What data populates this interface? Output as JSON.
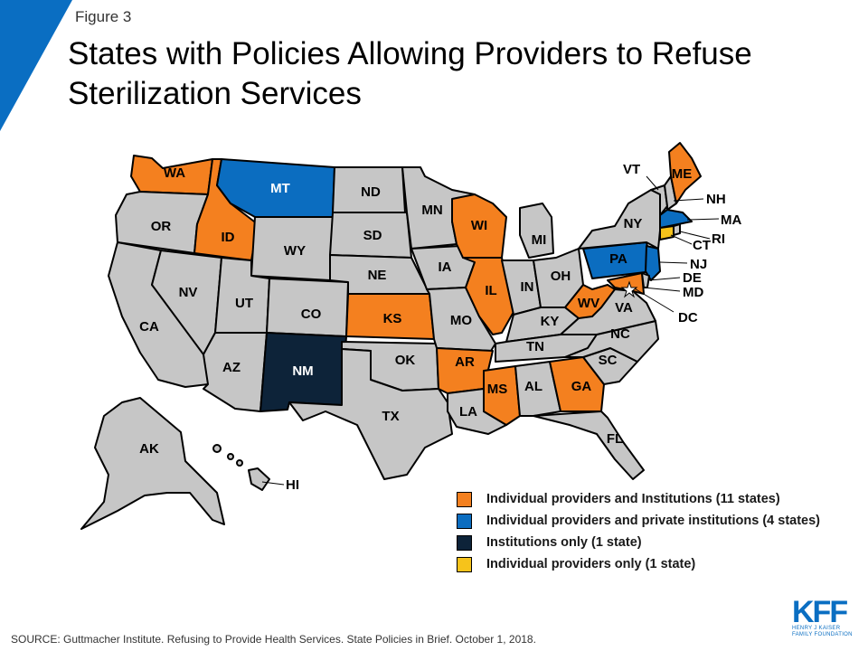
{
  "figure_label": "Figure 3",
  "title": "States with Policies Allowing Providers to Refuse Sterilization Services",
  "source": "SOURCE: Guttmacher Institute. Refusing to Provide Health Services. State Policies in Brief. October 1, 2018.",
  "logo": {
    "mark": "KFF",
    "line1": "HENRY J KAISER",
    "line2": "FAMILY FOUNDATION"
  },
  "colors": {
    "accent": "#0a6ec2",
    "none": "#c6c6c6",
    "individual_and_institutions": "#f4801f",
    "individual_and_private": "#0b6dc0",
    "institutions_only": "#0d2339",
    "individual_only": "#f6c31b"
  },
  "legend": [
    {
      "category": "individual_and_institutions",
      "label": "Individual providers and Institutions (11 states)"
    },
    {
      "category": "individual_and_private",
      "label": "Individual providers and private institutions (4 states)"
    },
    {
      "category": "institutions_only",
      "label": "Institutions only (1 state)"
    },
    {
      "category": "individual_only",
      "label": "Individual providers only (1 state)"
    }
  ],
  "states": [
    {
      "abbr": "WA",
      "category": "individual_and_institutions"
    },
    {
      "abbr": "OR",
      "category": "none"
    },
    {
      "abbr": "CA",
      "category": "none"
    },
    {
      "abbr": "ID",
      "category": "individual_and_institutions"
    },
    {
      "abbr": "NV",
      "category": "none"
    },
    {
      "abbr": "MT",
      "category": "individual_and_private"
    },
    {
      "abbr": "WY",
      "category": "none"
    },
    {
      "abbr": "UT",
      "category": "none"
    },
    {
      "abbr": "AZ",
      "category": "none"
    },
    {
      "abbr": "CO",
      "category": "none"
    },
    {
      "abbr": "NM",
      "category": "institutions_only"
    },
    {
      "abbr": "ND",
      "category": "none"
    },
    {
      "abbr": "SD",
      "category": "none"
    },
    {
      "abbr": "NE",
      "category": "none"
    },
    {
      "abbr": "KS",
      "category": "individual_and_institutions"
    },
    {
      "abbr": "OK",
      "category": "none"
    },
    {
      "abbr": "TX",
      "category": "none"
    },
    {
      "abbr": "MN",
      "category": "none"
    },
    {
      "abbr": "IA",
      "category": "none"
    },
    {
      "abbr": "MO",
      "category": "none"
    },
    {
      "abbr": "AR",
      "category": "individual_and_institutions"
    },
    {
      "abbr": "LA",
      "category": "none"
    },
    {
      "abbr": "WI",
      "category": "individual_and_institutions"
    },
    {
      "abbr": "IL",
      "category": "individual_and_institutions"
    },
    {
      "abbr": "MI",
      "category": "none"
    },
    {
      "abbr": "IN",
      "category": "none"
    },
    {
      "abbr": "OH",
      "category": "none"
    },
    {
      "abbr": "KY",
      "category": "none"
    },
    {
      "abbr": "TN",
      "category": "none"
    },
    {
      "abbr": "MS",
      "category": "individual_and_institutions"
    },
    {
      "abbr": "AL",
      "category": "none"
    },
    {
      "abbr": "GA",
      "category": "individual_and_institutions"
    },
    {
      "abbr": "FL",
      "category": "none"
    },
    {
      "abbr": "SC",
      "category": "none"
    },
    {
      "abbr": "NC",
      "category": "none"
    },
    {
      "abbr": "VA",
      "category": "none"
    },
    {
      "abbr": "WV",
      "category": "individual_and_institutions"
    },
    {
      "abbr": "PA",
      "category": "individual_and_private"
    },
    {
      "abbr": "NY",
      "category": "none"
    },
    {
      "abbr": "NJ",
      "category": "individual_and_private"
    },
    {
      "abbr": "DE",
      "category": "none"
    },
    {
      "abbr": "MD",
      "category": "individual_and_institutions"
    },
    {
      "abbr": "DC",
      "category": "none"
    },
    {
      "abbr": "VT",
      "category": "none"
    },
    {
      "abbr": "NH",
      "category": "none"
    },
    {
      "abbr": "ME",
      "category": "individual_and_institutions"
    },
    {
      "abbr": "MA",
      "category": "individual_and_private"
    },
    {
      "abbr": "RI",
      "category": "none"
    },
    {
      "abbr": "CT",
      "category": "individual_only"
    },
    {
      "abbr": "AK",
      "category": "none"
    },
    {
      "abbr": "HI",
      "category": "none"
    }
  ]
}
